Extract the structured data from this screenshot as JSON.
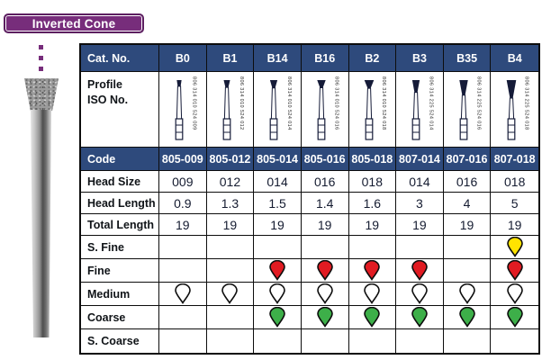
{
  "title": "Inverted Cone",
  "colors": {
    "brand_purple": "#772d7b",
    "table_navy": "#2e4a7c",
    "grit_super_fine": "#ffe300",
    "grit_fine": "#e11b22",
    "grit_medium": "#ffffff",
    "grit_coarse": "#3daf49"
  },
  "bur_image": "inverted-cone-diamond-bur-photo",
  "table": {
    "cat_no_label": "Cat. No.",
    "columns": [
      "B0",
      "B1",
      "B14",
      "B16",
      "B2",
      "B3",
      "B35",
      "B4"
    ],
    "profile": {
      "label": "Profile\nISO No.",
      "iso": [
        "806 314 010 524 009",
        "806 314 010 524 012",
        "806 314 010 524 014",
        "806 314 010 524 016",
        "806 314 010 524 018",
        "806 314 225 524 014",
        "806 314 225 524 016",
        "806 314 225 524 018"
      ]
    },
    "rows": [
      {
        "label": "Code",
        "type": "code",
        "values": [
          "805-009",
          "805-012",
          "805-014",
          "805-016",
          "805-018",
          "807-014",
          "807-016",
          "807-018"
        ]
      },
      {
        "label": "Head Size",
        "type": "value",
        "values": [
          "009",
          "012",
          "014",
          "016",
          "018",
          "014",
          "016",
          "018"
        ]
      },
      {
        "label": "Head Length",
        "type": "value",
        "values": [
          "0.9",
          "1.3",
          "1.5",
          "1.4",
          "1.6",
          "3",
          "4",
          "5"
        ]
      },
      {
        "label": "Total Length",
        "type": "value",
        "values": [
          "19",
          "19",
          "19",
          "19",
          "19",
          "19",
          "19",
          "19"
        ]
      },
      {
        "label": "S. Fine",
        "type": "grit",
        "fill": "#ffe300",
        "cells": [
          0,
          0,
          0,
          0,
          0,
          0,
          0,
          1
        ]
      },
      {
        "label": "Fine",
        "type": "grit",
        "fill": "#e11b22",
        "cells": [
          0,
          0,
          1,
          1,
          1,
          1,
          0,
          1
        ]
      },
      {
        "label": "Medium",
        "type": "grit",
        "fill": "#ffffff",
        "cells": [
          1,
          1,
          1,
          1,
          1,
          1,
          1,
          1
        ]
      },
      {
        "label": "Coarse",
        "type": "grit",
        "fill": "#3daf49",
        "cells": [
          0,
          0,
          1,
          1,
          1,
          1,
          1,
          1
        ]
      },
      {
        "label": "S. Coarse",
        "type": "grit",
        "fill": "",
        "cells": [
          0,
          0,
          0,
          0,
          0,
          0,
          0,
          0
        ]
      }
    ]
  }
}
